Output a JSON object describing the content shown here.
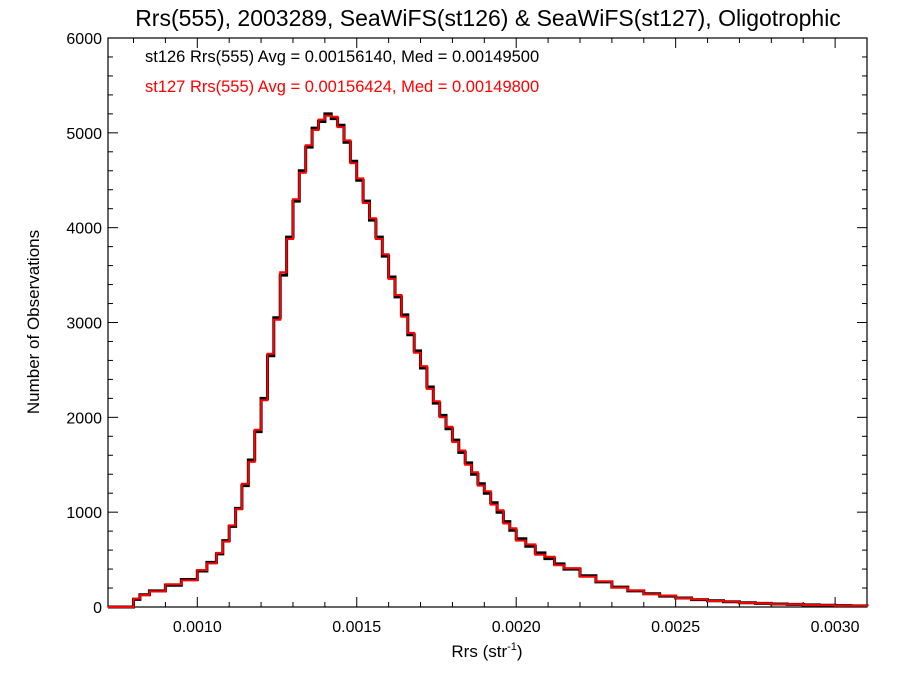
{
  "chart_data": {
    "type": "line",
    "title": "Rrs(555), 2003289, SeaWiFS(st126) & SeaWiFS(st127), Oligotrophic",
    "xlabel_main": "Rrs (str",
    "xlabel_sup": "-1",
    "xlabel_close": ")",
    "ylabel": "Number of Observations",
    "xlim": [
      0.00072,
      0.0031
    ],
    "ylim": [
      0,
      6000
    ],
    "x_ticks": [
      {
        "value": 0.001,
        "label": "0.0010"
      },
      {
        "value": 0.0015,
        "label": "0.0015"
      },
      {
        "value": 0.002,
        "label": "0.0020"
      },
      {
        "value": 0.0025,
        "label": "0.0025"
      },
      {
        "value": 0.003,
        "label": "0.0030"
      }
    ],
    "y_ticks": [
      {
        "value": 0,
        "label": "0"
      },
      {
        "value": 1000,
        "label": "1000"
      },
      {
        "value": 2000,
        "label": "2000"
      },
      {
        "value": 3000,
        "label": "3000"
      },
      {
        "value": 4000,
        "label": "4000"
      },
      {
        "value": 5000,
        "label": "5000"
      },
      {
        "value": 6000,
        "label": "6000"
      }
    ],
    "grid": false,
    "annotations": [
      {
        "text": "st126 Rrs(555) Avg = 0.00156140, Med = 0.00149500",
        "color": "#000000"
      },
      {
        "text": "st127 Rrs(555) Avg = 0.00156424, Med = 0.00149800",
        "color": "#ff0000"
      }
    ],
    "series": [
      {
        "color": "#000000",
        "x": [
          0.00078,
          0.0008,
          0.00082,
          0.00085,
          0.0009,
          0.00095,
          0.001,
          0.00103,
          0.00106,
          0.00108,
          0.0011,
          0.00112,
          0.00114,
          0.00116,
          0.00118,
          0.0012,
          0.00122,
          0.00124,
          0.00126,
          0.00128,
          0.0013,
          0.00132,
          0.00134,
          0.00136,
          0.00138,
          0.0014,
          0.00142,
          0.00144,
          0.00146,
          0.00148,
          0.0015,
          0.00152,
          0.00154,
          0.00156,
          0.00158,
          0.0016,
          0.00162,
          0.00164,
          0.00166,
          0.00168,
          0.0017,
          0.00172,
          0.00174,
          0.00176,
          0.00178,
          0.0018,
          0.00182,
          0.00184,
          0.00186,
          0.00188,
          0.0019,
          0.00192,
          0.00194,
          0.00196,
          0.00198,
          0.002,
          0.00203,
          0.00206,
          0.00209,
          0.00212,
          0.00215,
          0.0022,
          0.00225,
          0.0023,
          0.00235,
          0.0024,
          0.00245,
          0.0025,
          0.00255,
          0.0026,
          0.00265,
          0.0027,
          0.00275,
          0.0028,
          0.00285,
          0.0029,
          0.00295,
          0.003,
          0.00305,
          0.0031
        ],
        "y": [
          0,
          80,
          130,
          170,
          230,
          290,
          380,
          470,
          560,
          700,
          850,
          1040,
          1280,
          1550,
          1850,
          2200,
          2650,
          3050,
          3500,
          3900,
          4280,
          4600,
          4850,
          5050,
          5120,
          5200,
          5150,
          5080,
          4900,
          4700,
          4500,
          4280,
          4080,
          3900,
          3700,
          3480,
          3270,
          3080,
          2870,
          2700,
          2520,
          2320,
          2150,
          2020,
          1880,
          1760,
          1630,
          1520,
          1400,
          1300,
          1200,
          1100,
          1000,
          900,
          810,
          720,
          640,
          570,
          510,
          455,
          400,
          330,
          265,
          210,
          170,
          140,
          115,
          95,
          78,
          65,
          55,
          45,
          38,
          32,
          27,
          22,
          18,
          15,
          12,
          10
        ]
      },
      {
        "color": "#ff0000",
        "x": [
          0.00078,
          0.0008,
          0.00082,
          0.00085,
          0.0009,
          0.00095,
          0.001,
          0.00103,
          0.00106,
          0.00108,
          0.0011,
          0.00112,
          0.00114,
          0.00116,
          0.00118,
          0.0012,
          0.00122,
          0.00124,
          0.00126,
          0.00128,
          0.0013,
          0.00132,
          0.00134,
          0.00136,
          0.00138,
          0.0014,
          0.00142,
          0.00144,
          0.00146,
          0.00148,
          0.0015,
          0.00152,
          0.00154,
          0.00156,
          0.00158,
          0.0016,
          0.00162,
          0.00164,
          0.00166,
          0.00168,
          0.0017,
          0.00172,
          0.00174,
          0.00176,
          0.00178,
          0.0018,
          0.00182,
          0.00184,
          0.00186,
          0.00188,
          0.0019,
          0.00192,
          0.00194,
          0.00196,
          0.00198,
          0.002,
          0.00203,
          0.00206,
          0.00209,
          0.00212,
          0.00215,
          0.0022,
          0.00225,
          0.0023,
          0.00235,
          0.0024,
          0.00245,
          0.0025,
          0.00255,
          0.0026,
          0.00265,
          0.0027,
          0.00275,
          0.0028,
          0.00285,
          0.0029,
          0.00295,
          0.003,
          0.00305,
          0.0031
        ],
        "y": [
          0,
          90,
          125,
          165,
          240,
          280,
          390,
          460,
          570,
          690,
          860,
          1030,
          1300,
          1530,
          1870,
          2180,
          2670,
          3030,
          3530,
          3880,
          4300,
          4580,
          4870,
          5030,
          5140,
          5180,
          5170,
          5060,
          4920,
          4680,
          4520,
          4260,
          4100,
          3880,
          3720,
          3460,
          3290,
          3060,
          2890,
          2680,
          2540,
          2300,
          2170,
          2000,
          1900,
          1740,
          1650,
          1500,
          1420,
          1280,
          1220,
          1080,
          1020,
          880,
          830,
          700,
          660,
          550,
          530,
          440,
          410,
          320,
          270,
          205,
          175,
          135,
          120,
          92,
          80,
          63,
          57,
          43,
          40,
          30,
          28,
          21,
          19,
          14,
          13,
          9
        ]
      }
    ]
  }
}
